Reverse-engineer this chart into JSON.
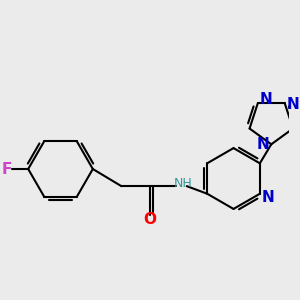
{
  "background_color": "#ebebeb",
  "bond_color": "#000000",
  "bond_width": 1.5,
  "figsize": [
    3.0,
    3.0
  ],
  "dpi": 100,
  "xlim": [
    -1.0,
    6.5
  ],
  "ylim": [
    -3.2,
    3.2
  ],
  "colors": {
    "F": "#cc44cc",
    "O": "#ff0000",
    "N_blue": "#0000cc",
    "N_teal": "#339999",
    "C": "#000000"
  }
}
